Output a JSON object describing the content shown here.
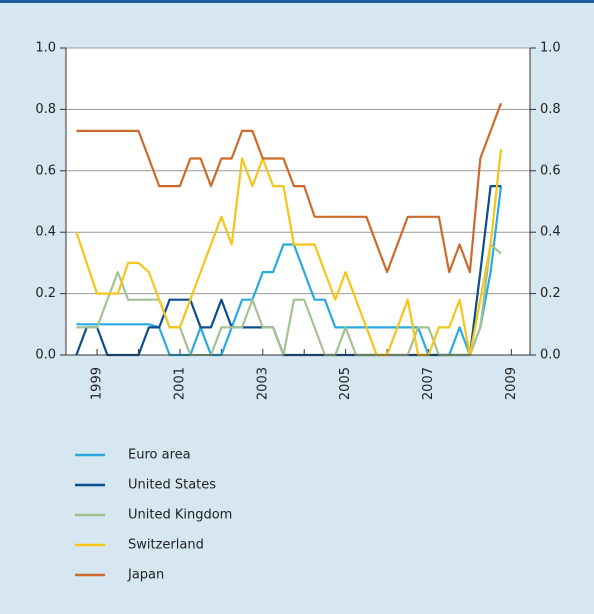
{
  "chart_data": {
    "type": "line",
    "x": [
      1998.5,
      1998.75,
      1999,
      1999.25,
      1999.5,
      1999.75,
      2000,
      2000.25,
      2000.5,
      2000.75,
      2001,
      2001.25,
      2001.5,
      2001.75,
      2002,
      2002.25,
      2002.5,
      2002.75,
      2003,
      2003.25,
      2003.5,
      2003.75,
      2004,
      2004.25,
      2004.5,
      2004.75,
      2005,
      2005.25,
      2005.5,
      2005.75,
      2006,
      2006.25,
      2006.5,
      2006.75,
      2007,
      2007.25,
      2007.5,
      2007.75,
      2008,
      2008.25,
      2008.5,
      2008.75
    ],
    "series": [
      {
        "name": "Euro area",
        "color": "#29a9e0",
        "values": [
          0.1,
          0.1,
          0.1,
          0.1,
          0.1,
          0.1,
          0.1,
          0.1,
          0.09,
          0,
          0,
          0,
          0.09,
          0,
          0,
          0.09,
          0.18,
          0.18,
          0.27,
          0.27,
          0.36,
          0.36,
          0.27,
          0.18,
          0.18,
          0.09,
          0.09,
          0.09,
          0.09,
          0.09,
          0.09,
          0.09,
          0.09,
          0.09,
          0,
          0,
          0,
          0.09,
          0,
          0.09,
          0.27,
          0.55
        ]
      },
      {
        "name": "United States",
        "color": "#0c4d8c",
        "values": [
          0,
          0.09,
          0.09,
          0,
          0,
          0,
          0,
          0.09,
          0.09,
          0.18,
          0.18,
          0.18,
          0.09,
          0.09,
          0.18,
          0.09,
          0.09,
          0.09,
          0.09,
          0.09,
          0,
          0,
          0,
          0,
          0,
          0,
          0,
          0,
          0,
          0,
          0,
          0,
          0,
          0,
          0,
          0,
          0,
          0,
          0,
          0.27,
          0.55,
          0.55
        ]
      },
      {
        "name": "United Kingdom",
        "color": "#a3c293",
        "values": [
          0.09,
          0.09,
          0.09,
          0.18,
          0.27,
          0.18,
          0.18,
          0.18,
          0.18,
          0.09,
          0.09,
          0,
          0,
          0,
          0.09,
          0.09,
          0.09,
          0.18,
          0.09,
          0.09,
          0,
          0.18,
          0.18,
          0.09,
          0,
          0,
          0.09,
          0,
          0,
          0,
          0,
          0,
          0,
          0.09,
          0.09,
          0,
          0,
          0,
          0,
          0.09,
          0.36,
          0.33
        ]
      },
      {
        "name": "Switzerland",
        "color": "#f5c518",
        "values": [
          0.4,
          0.3,
          0.2,
          0.2,
          0.2,
          0.3,
          0.3,
          0.27,
          0.18,
          0.09,
          0.09,
          0.18,
          0.27,
          0.36,
          0.45,
          0.36,
          0.64,
          0.55,
          0.64,
          0.55,
          0.55,
          0.36,
          0.36,
          0.36,
          0.27,
          0.18,
          0.27,
          0.18,
          0.09,
          0,
          0,
          0.09,
          0.18,
          0,
          0,
          0.09,
          0.09,
          0.18,
          0,
          0.18,
          0.36,
          0.67
        ]
      },
      {
        "name": "Japan",
        "color": "#cc6a2a",
        "values": [
          0.73,
          0.73,
          0.73,
          0.73,
          0.73,
          0.73,
          0.73,
          0.64,
          0.55,
          0.55,
          0.55,
          0.64,
          0.64,
          0.55,
          0.64,
          0.64,
          0.73,
          0.73,
          0.64,
          0.64,
          0.64,
          0.55,
          0.55,
          0.45,
          0.45,
          0.45,
          0.45,
          0.45,
          0.45,
          0.36,
          0.27,
          0.36,
          0.45,
          0.45,
          0.45,
          0.45,
          0.27,
          0.36,
          0.27,
          0.64,
          0.73,
          0.82
        ]
      }
    ],
    "xlim": [
      1998.25,
      2009.45
    ],
    "xticks": [
      1999,
      2001,
      2003,
      2005,
      2007,
      2009
    ],
    "xminorticks": [
      2000,
      2002,
      2004,
      2006,
      2008
    ],
    "ylim": [
      0,
      1
    ],
    "yticks": [
      {
        "value": 0,
        "label": "0.0"
      },
      0.2,
      0.4,
      0.6,
      0.8,
      {
        "value": 1,
        "label": "1.0"
      }
    ],
    "y2lim": [
      0,
      1
    ],
    "y2ticks": [
      {
        "value": 0,
        "label": "0.0"
      },
      0.2,
      0.4,
      0.6,
      0.8,
      {
        "value": 1,
        "label": "1.0"
      }
    ],
    "grid": true
  }
}
